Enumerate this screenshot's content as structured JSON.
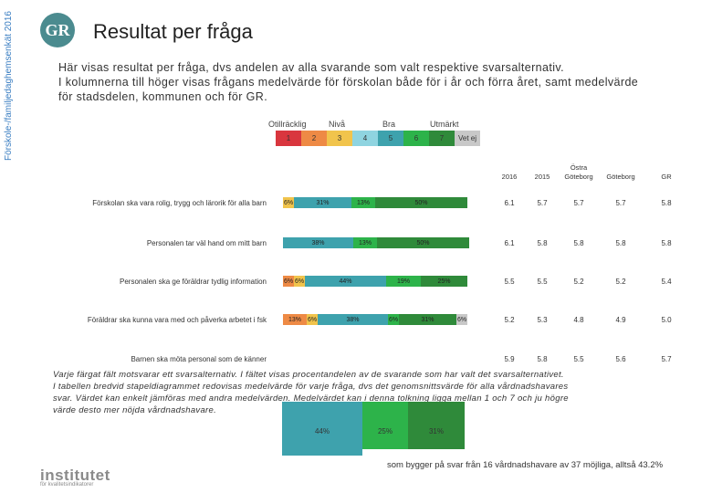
{
  "side_label": "Förskole-/familjedaghemsenkät 2016",
  "logo_text": "GR",
  "title": "Resultat per fråga",
  "intro": [
    "Här visas resultat per fråga, dvs andelen av alla svarande som valt respektive svarsalternativ.",
    "I kolumnerna till höger visas frågans medelvärde för förskolan både för i år och förra året, samt medelvärde",
    "för stadsdelen, kommunen och för GR."
  ],
  "scale_groups": [
    "Otillräcklig",
    "Nivå",
    "Bra",
    "Utmärkt"
  ],
  "scale_boxes": [
    "1",
    "2",
    "3",
    "4",
    "5",
    "6",
    "7",
    "Vet ej"
  ],
  "colors": {
    "s1": "#d9363e",
    "s2": "#ee8a45",
    "s3": "#f1c44c",
    "s4": "#8fd4e0",
    "s5": "#3ea2ad",
    "s6": "#2db34a",
    "s7": "#2f8a3a",
    "vetej": "#c8c8c8"
  },
  "column_headers": {
    "y2016": "2016",
    "y2015": "2015",
    "ostra": "Östra\nGöteborg",
    "goteborg": "Göteborg",
    "gr": "GR"
  },
  "questions": [
    {
      "label": "Förskolan ska vara rolig, trygg och lärorik för alla barn",
      "segments": [
        {
          "c": "s3",
          "pct": 6,
          "text": "6%"
        },
        {
          "c": "s5",
          "pct": 31,
          "text": "31%"
        },
        {
          "c": "s6",
          "pct": 13,
          "text": "13%"
        },
        {
          "c": "s7",
          "pct": 50,
          "text": "50%"
        }
      ],
      "values": [
        "6.1",
        "5.7",
        "5.7",
        "5.7",
        "5.8"
      ]
    },
    {
      "label": "Personalen tar väl hand om mitt barn",
      "segments": [
        {
          "c": "s5",
          "pct": 38,
          "text": "38%"
        },
        {
          "c": "s6",
          "pct": 13,
          "text": "13%"
        },
        {
          "c": "s7",
          "pct": 50,
          "text": "50%"
        }
      ],
      "values": [
        "6.1",
        "5.8",
        "5.8",
        "5.8",
        "5.8"
      ]
    },
    {
      "label": "Personalen ska ge föräldrar tydlig information",
      "segments": [
        {
          "c": "s2",
          "pct": 6,
          "text": "6%"
        },
        {
          "c": "s3",
          "pct": 6,
          "text": "6%"
        },
        {
          "c": "s5",
          "pct": 44,
          "text": "44%"
        },
        {
          "c": "s6",
          "pct": 19,
          "text": "19%"
        },
        {
          "c": "s7",
          "pct": 25,
          "text": "25%"
        }
      ],
      "values": [
        "5.5",
        "5.5",
        "5.2",
        "5.2",
        "5.4"
      ]
    },
    {
      "label": "Föräldrar ska kunna vara med och påverka arbetet i fsk",
      "segments": [
        {
          "c": "s2",
          "pct": 13,
          "text": "13%"
        },
        {
          "c": "s3",
          "pct": 6,
          "text": "6%"
        },
        {
          "c": "s5",
          "pct": 38,
          "text": "38%"
        },
        {
          "c": "s6",
          "pct": 6,
          "text": "6%"
        },
        {
          "c": "s7",
          "pct": 31,
          "text": "31%"
        },
        {
          "c": "vetej",
          "pct": 6,
          "text": "6%"
        }
      ],
      "values": [
        "5.2",
        "5.3",
        "4.8",
        "4.9",
        "5.0"
      ]
    },
    {
      "label": "Barnen ska möta personal som de känner",
      "segments": [],
      "values": [
        "5.9",
        "5.8",
        "5.5",
        "5.6",
        "5.7"
      ]
    }
  ],
  "footnote": [
    "Varje färgat fält motsvarar ett svarsalternativ. I fältet visas procentandelen av de svarande som har valt det svarsalternativet.",
    "I tabellen bredvid stapeldiagrammet redovisas medelvärde för varje fråga, dvs det genomsnittsvärde för alla vårdnadshavares",
    "svar. Värdet kan enkelt jämföras med andra medelvärden. Medelvärdet kan i denna tolkning ligga mellan 1 och 7 och ju högre",
    "värde desto mer nöjda vårdnadshavare."
  ],
  "overlay_segments": [
    {
      "c": "s5",
      "text": "44%"
    },
    {
      "c": "s6",
      "text": "25%"
    },
    {
      "c": "s7",
      "text": "31%"
    }
  ],
  "bottom_note": "som bygger på svar från 16 vårdnadshavare av 37 möjliga, alltså 43.2%",
  "institutet": "institutet",
  "institutet_sub": "för kvalitetsindikatorer"
}
